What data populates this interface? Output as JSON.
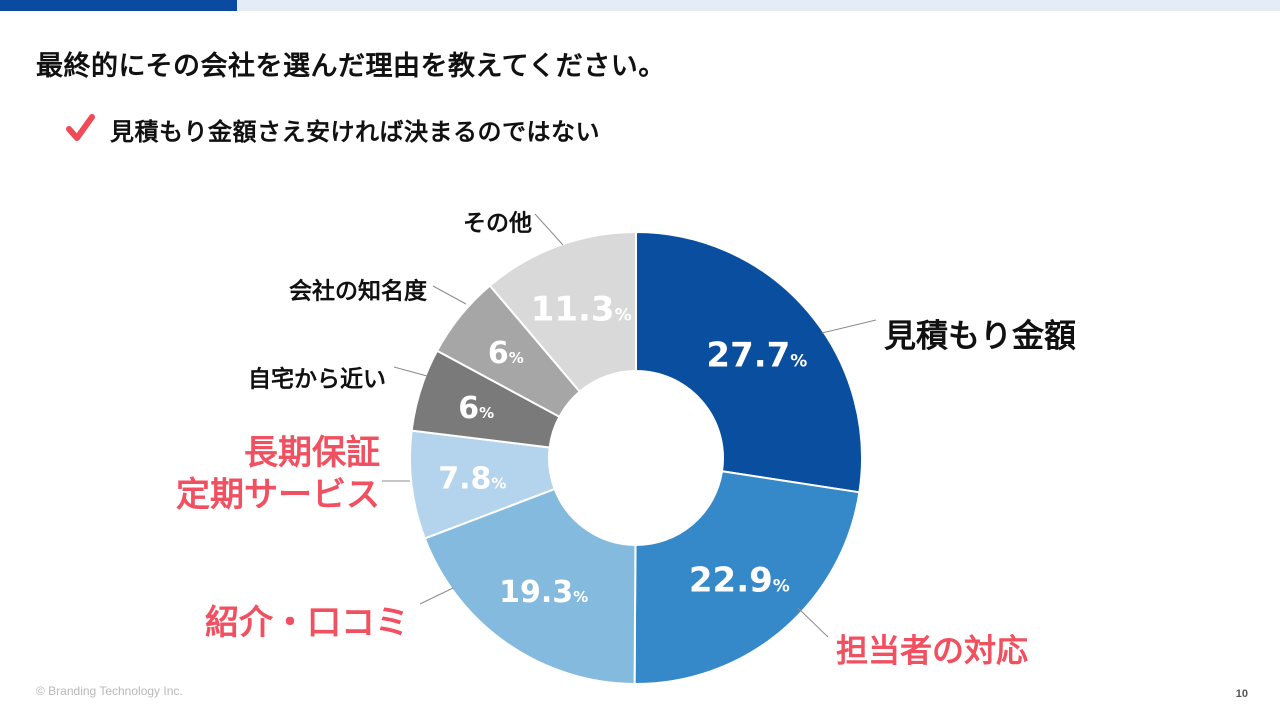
{
  "slide": {
    "title": "最終的にその会社を選んだ理由を教えてください。",
    "point": "見積もり金額さえ安ければ決まるのではない",
    "copyright": "© Branding Technology Inc.",
    "page_number": "10"
  },
  "colors": {
    "accent": "#0a4aa0",
    "highlight": "#f05060",
    "check": "#ef4a55"
  },
  "icons": {
    "check": "check-icon"
  },
  "chart_data": {
    "type": "pie",
    "donut": true,
    "unit": "%",
    "slices": [
      {
        "label": "見積もり金額",
        "value": 27.7,
        "color": "#0a4ea0",
        "label_color": "#111111"
      },
      {
        "label": "担当者の対応",
        "value": 22.9,
        "color": "#3589c8",
        "label_color": "#f05060"
      },
      {
        "label": "紹介・口コミ",
        "value": 19.3,
        "color": "#85badf",
        "label_color": "#f05060"
      },
      {
        "label": "長期保証\n定期サービス",
        "value": 7.8,
        "color": "#b3d4ec",
        "label_color": "#f05060"
      },
      {
        "label": "自宅から近い",
        "value": 6,
        "color": "#7a7a7a",
        "label_color": "#111111"
      },
      {
        "label": "会社の知名度",
        "value": 6,
        "color": "#a6a6a6",
        "label_color": "#111111"
      },
      {
        "label": "その他",
        "value": 11.3,
        "color": "#d9d9d9",
        "label_color": "#111111"
      }
    ]
  }
}
